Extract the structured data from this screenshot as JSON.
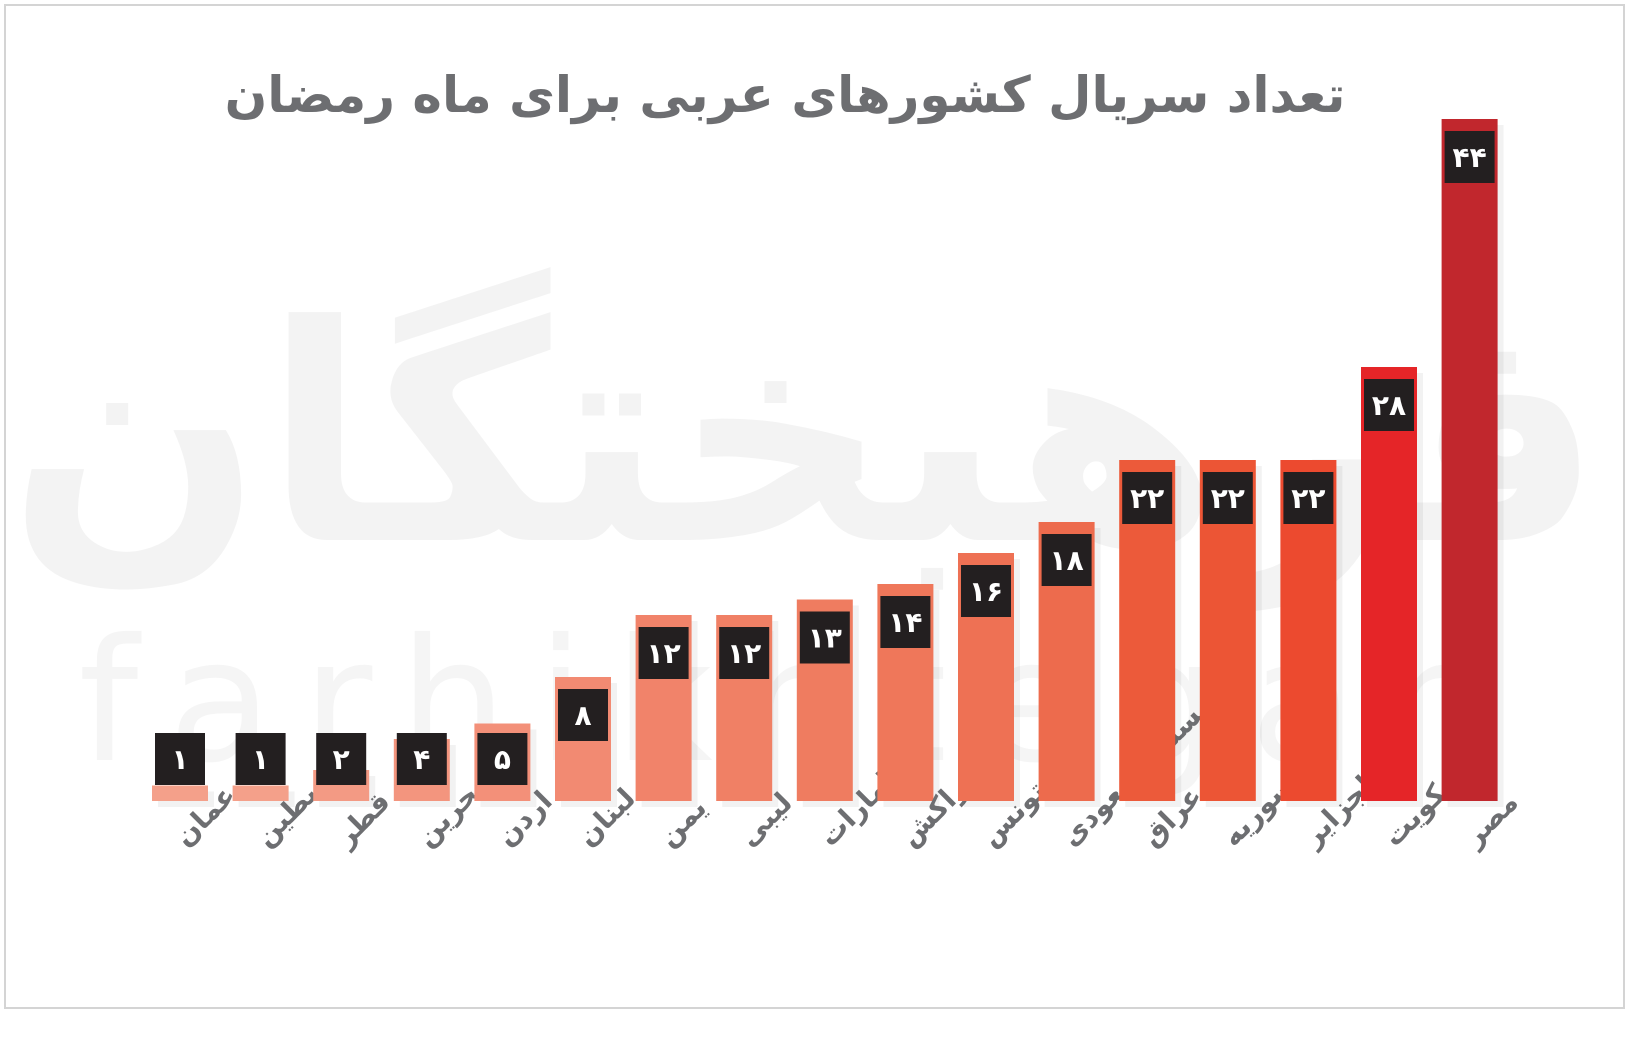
{
  "watermark": {
    "persian": "فرهیختگان",
    "latin": "farhikhtegan"
  },
  "chart_data": {
    "type": "bar",
    "title": "تعداد سریال کشورهای عربی برای ماه رمضان",
    "categories": [
      "عمان",
      "فلسطین",
      "قطر",
      "بحرین",
      "اردن",
      "لبنان",
      "یمن",
      "لیبی",
      "امارات",
      "مراکش",
      "تونس",
      "عربستان سعودی",
      "عراق",
      "سوریه",
      "الجزایر",
      "کویت",
      "مصر"
    ],
    "values": [
      1,
      1,
      2,
      4,
      5,
      8,
      12,
      12,
      13,
      14,
      16,
      18,
      22,
      22,
      22,
      28,
      44
    ],
    "value_labels": [
      "۱",
      "۱",
      "۲",
      "۴",
      "۵",
      "۸",
      "۱۲",
      "۱۲",
      "۱۳",
      "۱۴",
      "۱۶",
      "۱۸",
      "۲۲",
      "۲۲",
      "۲۲",
      "۲۸",
      "۴۴"
    ],
    "ylim": [
      0,
      44
    ],
    "grid": false,
    "legend": "none",
    "label_box_color": "#231f20",
    "colors": [
      "#f4a08a",
      "#f4a08a",
      "#f39a84",
      "#f3957e",
      "#f39079",
      "#f28a72",
      "#f1836a",
      "#f08065",
      "#ef7c60",
      "#ef775a",
      "#ee7154",
      "#ed6b4d",
      "#ec5a3a",
      "#ec5535",
      "#ec4a2f",
      "#e52528",
      "#c1272d"
    ]
  }
}
